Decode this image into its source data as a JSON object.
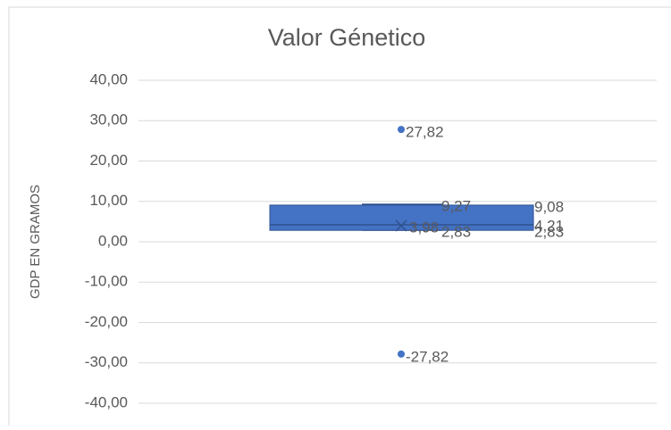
{
  "chart_data": {
    "type": "box",
    "title": "Valor Génetico",
    "y_label": "GDP EN GRAMOS",
    "ylim": [
      -40,
      40
    ],
    "yticks": [
      {
        "value": 40,
        "label": "40,00"
      },
      {
        "value": 30,
        "label": "30,00"
      },
      {
        "value": 20,
        "label": "20,00"
      },
      {
        "value": 10,
        "label": "10,00"
      },
      {
        "value": 0,
        "label": "0,00"
      },
      {
        "value": -10,
        "label": "-10,00"
      },
      {
        "value": -20,
        "label": "-20,00"
      },
      {
        "value": -30,
        "label": "-30,00"
      },
      {
        "value": -40,
        "label": "-40,00"
      }
    ],
    "grid": true,
    "color": "#4472c4",
    "box": {
      "whisker_high": 9.27,
      "q3": 9.08,
      "median": 4.21,
      "mean": 3.98,
      "q1": 2.83,
      "whisker_low": 2.83,
      "outliers": [
        27.82,
        -27.82
      ]
    },
    "value_labels": {
      "whisker_high": "9,27",
      "q3": "9,08",
      "median": "4,21",
      "mean": "3,98",
      "q1": "2,83",
      "whisker_low": "2,83",
      "outliers": [
        "27,82",
        "-27,82"
      ]
    }
  }
}
